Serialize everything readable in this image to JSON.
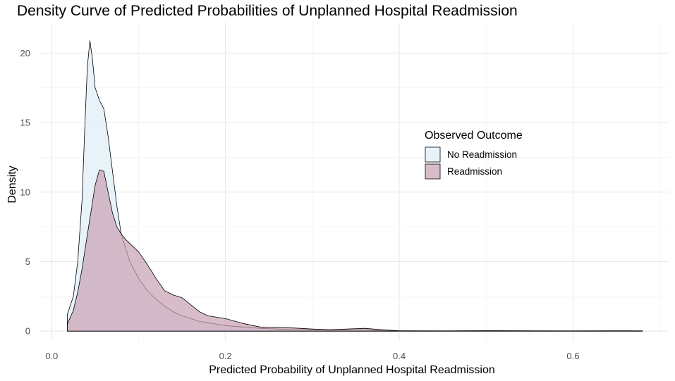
{
  "chart_data": {
    "type": "area",
    "title": "Density Curve of Predicted Probabilities of Unplanned Hospital Readmission",
    "xlabel": "Predicted Probability of Unplanned Hospital Readmission",
    "ylabel": "Density",
    "xlim": [
      -0.014,
      0.71
    ],
    "ylim": [
      -0.7,
      22.2
    ],
    "x_ticks": [
      0.0,
      0.2,
      0.4,
      0.6
    ],
    "x_tick_labels": [
      "0.0",
      "0.2",
      "0.4",
      "0.6"
    ],
    "y_ticks": [
      0,
      5,
      10,
      15,
      20
    ],
    "y_tick_labels": [
      "0",
      "5",
      "10",
      "15",
      "20"
    ],
    "grid": true,
    "legend": {
      "title": "Observed Outcome",
      "position": "right"
    },
    "series": [
      {
        "name": "No Readmission",
        "fill": "#ddeef6",
        "x": [
          0.018,
          0.025,
          0.03,
          0.035,
          0.038,
          0.041,
          0.044,
          0.047,
          0.05,
          0.055,
          0.06,
          0.065,
          0.07,
          0.075,
          0.08,
          0.09,
          0.1,
          0.11,
          0.12,
          0.13,
          0.14,
          0.15,
          0.16,
          0.17,
          0.18,
          0.2,
          0.22,
          0.24,
          0.26,
          0.28,
          0.3,
          0.32,
          0.35,
          0.38,
          0.4,
          0.45,
          0.5,
          0.55,
          0.6,
          0.65,
          0.68
        ],
        "y": [
          1.2,
          2.5,
          5.0,
          9.5,
          14.5,
          19.0,
          20.9,
          19.5,
          17.5,
          16.6,
          16.0,
          14.0,
          11.5,
          9.0,
          7.0,
          5.0,
          3.8,
          2.9,
          2.3,
          1.8,
          1.4,
          1.1,
          0.9,
          0.7,
          0.6,
          0.4,
          0.3,
          0.2,
          0.15,
          0.1,
          0.1,
          0.07,
          0.1,
          0.05,
          0.03,
          0.02,
          0.03,
          0.02,
          0.02,
          0.03,
          0.02
        ]
      },
      {
        "name": "Readmission",
        "fill": "#c9a0b4",
        "x": [
          0.018,
          0.025,
          0.03,
          0.035,
          0.04,
          0.045,
          0.05,
          0.055,
          0.06,
          0.065,
          0.07,
          0.075,
          0.08,
          0.085,
          0.09,
          0.1,
          0.11,
          0.12,
          0.13,
          0.14,
          0.15,
          0.16,
          0.17,
          0.18,
          0.19,
          0.2,
          0.22,
          0.24,
          0.26,
          0.28,
          0.3,
          0.32,
          0.34,
          0.36,
          0.38,
          0.4,
          0.45,
          0.5,
          0.55,
          0.6,
          0.65,
          0.68
        ],
        "y": [
          0.5,
          1.5,
          2.8,
          4.5,
          6.5,
          8.5,
          10.5,
          11.6,
          11.5,
          10.0,
          8.5,
          7.5,
          7.0,
          6.6,
          6.3,
          5.7,
          4.8,
          3.8,
          2.9,
          2.6,
          2.4,
          1.9,
          1.4,
          1.1,
          1.0,
          0.9,
          0.55,
          0.3,
          0.25,
          0.22,
          0.15,
          0.1,
          0.15,
          0.2,
          0.1,
          0.02,
          0.01,
          0.03,
          0.02,
          0.01,
          0.01,
          0.01
        ]
      }
    ]
  }
}
